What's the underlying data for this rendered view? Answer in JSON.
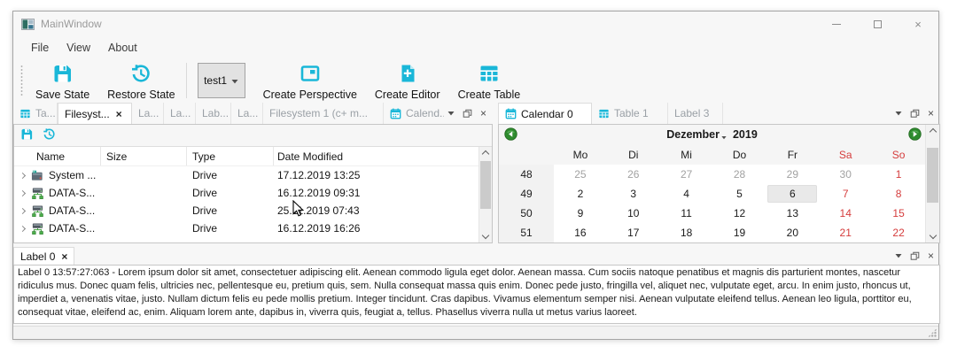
{
  "titlebar": {
    "title": "MainWindow"
  },
  "glyphs": {
    "close": "×"
  },
  "menubar": {
    "items": [
      "File",
      "View",
      "About"
    ]
  },
  "toolbar": {
    "save_state": "Save State",
    "restore_state": "Restore State",
    "combo_value": "test1",
    "create_perspective": "Create Perspective",
    "create_editor": "Create Editor",
    "create_table": "Create Table"
  },
  "left_panel": {
    "tabs": [
      {
        "label": "Ta...",
        "icon": "table"
      },
      {
        "label": "Filesyst...",
        "active": true,
        "closable": true
      },
      {
        "label": "La..."
      },
      {
        "label": "La..."
      },
      {
        "label": "Lab..."
      },
      {
        "label": "La..."
      },
      {
        "label": "Filesystem 1 (c+ m..."
      },
      {
        "label": "Calend...",
        "icon": "calendar"
      }
    ],
    "tree": {
      "columns": [
        "Name",
        "Size",
        "Type",
        "Date Modified"
      ],
      "rows": [
        {
          "name": "System ...",
          "size": "",
          "type": "Drive",
          "modified": "17.12.2019 13:25",
          "icon": "sysdrive"
        },
        {
          "name": "DATA-S...",
          "size": "",
          "type": "Drive",
          "modified": "16.12.2019 09:31",
          "icon": "netdrive"
        },
        {
          "name": "DATA-S...",
          "size": "",
          "type": "Drive",
          "modified": "25.11.2019 07:43",
          "icon": "netdrive"
        },
        {
          "name": "DATA-S...",
          "size": "",
          "type": "Drive",
          "modified": "16.12.2019 16:26",
          "icon": "netdrive"
        }
      ]
    }
  },
  "right_panel": {
    "tabs": [
      {
        "label": "Calendar 0",
        "icon": "calendar",
        "active": true
      },
      {
        "label": "Table 1",
        "icon": "table"
      },
      {
        "label": "Label 3"
      }
    ],
    "calendar": {
      "month": "Dezember",
      "year": "2019",
      "day_headers": [
        "Mo",
        "Di",
        "Mi",
        "Do",
        "Fr",
        "Sa",
        "So"
      ],
      "weeks": [
        {
          "num": "48",
          "days": [
            {
              "d": "25",
              "muted": true
            },
            {
              "d": "26",
              "muted": true
            },
            {
              "d": "27",
              "muted": true
            },
            {
              "d": "28",
              "muted": true
            },
            {
              "d": "29",
              "muted": true
            },
            {
              "d": "30",
              "muted": true
            },
            {
              "d": "1",
              "weekend": true
            }
          ]
        },
        {
          "num": "49",
          "days": [
            {
              "d": "2"
            },
            {
              "d": "3"
            },
            {
              "d": "4"
            },
            {
              "d": "5"
            },
            {
              "d": "6",
              "selected": true
            },
            {
              "d": "7",
              "weekend": true
            },
            {
              "d": "8",
              "weekend": true
            }
          ]
        },
        {
          "num": "50",
          "days": [
            {
              "d": "9"
            },
            {
              "d": "10"
            },
            {
              "d": "11"
            },
            {
              "d": "12"
            },
            {
              "d": "13"
            },
            {
              "d": "14",
              "weekend": true
            },
            {
              "d": "15",
              "weekend": true
            }
          ]
        },
        {
          "num": "51",
          "days": [
            {
              "d": "16"
            },
            {
              "d": "17"
            },
            {
              "d": "18"
            },
            {
              "d": "19"
            },
            {
              "d": "20"
            },
            {
              "d": "21",
              "weekend": true
            },
            {
              "d": "22",
              "weekend": true
            }
          ]
        }
      ]
    }
  },
  "bottom_panel": {
    "tab_label": "Label 0",
    "text": "Label 0 13:57:27:063 - Lorem ipsum dolor sit amet, consectetuer adipiscing elit. Aenean commodo ligula eget dolor. Aenean massa. Cum sociis natoque penatibus et magnis dis parturient montes, nascetur ridiculus mus. Donec quam felis, ultricies nec, pellentesque eu, pretium quis, sem. Nulla consequat massa quis enim. Donec pede justo, fringilla vel, aliquet nec, vulputate eget, arcu. In enim justo, rhoncus ut, imperdiet a, venenatis vitae, justo. Nullam dictum felis eu pede mollis pretium. Integer tincidunt. Cras dapibus. Vivamus elementum semper nisi. Aenean vulputate eleifend tellus. Aenean leo ligula, porttitor eu, consequat vitae, eleifend ac, enim. Aliquam lorem ante, dapibus in, viverra quis, feugiat a, tellus. Phasellus viverra nulla ut metus varius laoreet."
  },
  "icons": {
    "app-icon": "window-logo",
    "save-icon": "floppy",
    "history-icon": "clock-undo",
    "perspective-icon": "window-layout",
    "editor-icon": "document-plus",
    "table-icon": "grid",
    "calendar-icon": "calendar",
    "dropdown-icon": "chevron-down",
    "float-icon": "restore-window",
    "close-icon": "x",
    "minimize-icon": "minus",
    "maximize-icon": "square",
    "nav-prev-icon": "green-circle-arrow-left",
    "nav-next-icon": "green-circle-arrow-right",
    "system-drive-icon": "drive",
    "network-drive-icon": "drive-network",
    "cursor-icon": "arrow-pointer",
    "resize-grip-icon": "diagonal-dots"
  },
  "colors": {
    "accent": "#1ab7d8",
    "weekend_red": "#d53c3c",
    "nav_green": "#2e8b2e",
    "inactive_tab_text": "#9aa0a6",
    "window_bg": "#f7f7f7",
    "selection_bg": "#e9e9e9"
  }
}
